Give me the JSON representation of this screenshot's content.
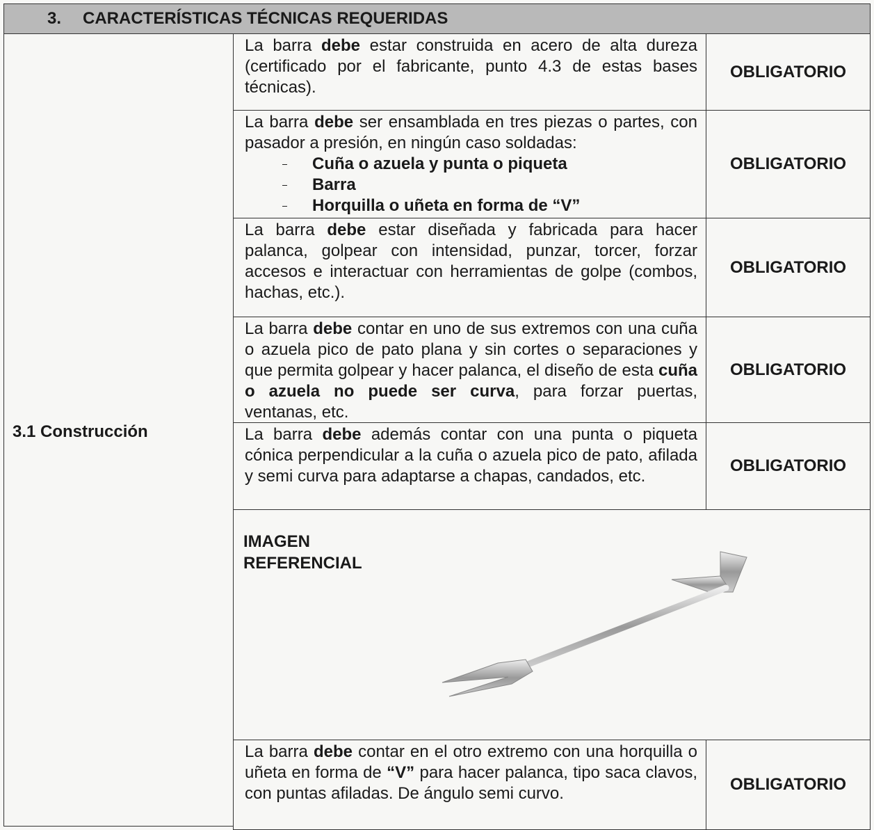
{
  "header": {
    "number": "3.",
    "title": "CARACTERÍSTICAS TÉCNICAS REQUERIDAS"
  },
  "section": {
    "label": "3.1 Construcción"
  },
  "rows": [
    {
      "text": [
        {
          "text": "La barra "
        },
        {
          "text": "debe",
          "bold": true
        },
        {
          "text": " estar construida en acero de alta dureza (certificado por el fabricante, punto 4.3 de estas bases técnicas)."
        }
      ],
      "status": "OBLIGATORIO"
    },
    {
      "text": [
        {
          "text": "La barra "
        },
        {
          "text": "debe",
          "bold": true
        },
        {
          "text": " ser ensamblada en tres piezas o partes, con pasador a presión, en ningún caso soldadas:"
        }
      ],
      "list": [
        "Cuña o azuela y punta o piqueta",
        "Barra",
        "Horquilla o uñeta en forma de “V”"
      ],
      "status": "OBLIGATORIO"
    },
    {
      "text": [
        {
          "text": "La barra "
        },
        {
          "text": "debe",
          "bold": true
        },
        {
          "text": " estar diseñada y fabricada para hacer palanca, golpear con intensidad, punzar, torcer, forzar accesos e interactuar con herramientas de golpe (combos, hachas, etc.)."
        }
      ],
      "status": "OBLIGATORIO"
    },
    {
      "text": [
        {
          "text": "La barra "
        },
        {
          "text": "debe",
          "bold": true
        },
        {
          "text": " contar en uno de sus extremos con una cuña o azuela pico de pato plana y sin cortes o separaciones y que permita golpear y hacer palanca, el diseño de esta "
        },
        {
          "text": "cuña o azuela no puede ser curva",
          "bold": true
        },
        {
          "text": ", para forzar puertas, ventanas, etc."
        }
      ],
      "status": "OBLIGATORIO"
    },
    {
      "text": [
        {
          "text": "La barra "
        },
        {
          "text": "debe",
          "bold": true
        },
        {
          "text": " además contar con una punta o piqueta cónica perpendicular a la cuña o azuela pico de pato, afilada y semi curva para adaptarse a chapas, candados, etc."
        }
      ],
      "status": "OBLIGATORIO"
    },
    {
      "text": [
        {
          "text": "La barra "
        },
        {
          "text": "debe",
          "bold": true
        },
        {
          "text": " contar en el otro extremo con una horquilla o uñeta en forma de "
        },
        {
          "text": "“V”",
          "bold": true
        },
        {
          "text": " para hacer palanca, tipo saca clavos, con puntas afiladas. De ángulo semi curvo."
        }
      ],
      "status": "OBLIGATORIO"
    }
  ],
  "image": {
    "label": "IMAGEN REFERENCIAL"
  }
}
